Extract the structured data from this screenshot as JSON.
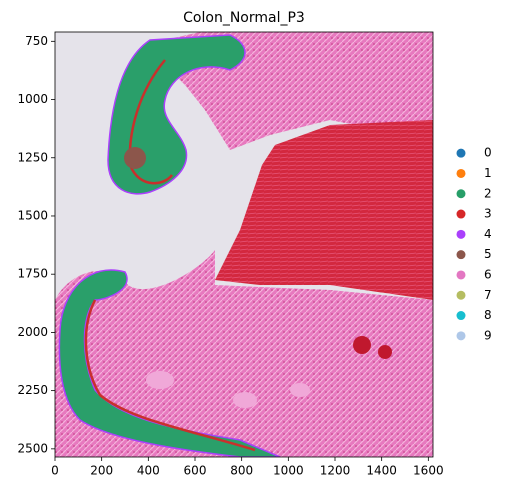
{
  "chart_data": {
    "type": "spatial",
    "title": "Colon_Normal_P3",
    "xlim": [
      0,
      1620
    ],
    "ylim": [
      2535,
      710
    ],
    "xticks": [
      0,
      200,
      400,
      600,
      800,
      1000,
      1200,
      1400,
      1600
    ],
    "yticks": [
      750,
      1000,
      1250,
      1500,
      1750,
      2000,
      2250,
      2500
    ],
    "legend": {
      "loc": "right",
      "labels": [
        "0",
        "1",
        "2",
        "3",
        "4",
        "5",
        "6",
        "7",
        "8",
        "9"
      ],
      "colors": [
        "#1f77b4",
        "#ff7f0e",
        "#279e68",
        "#d62728",
        "#aa40fc",
        "#8c564b",
        "#e377c2",
        "#b5bd61",
        "#17becf",
        "#aec7e8"
      ]
    }
  }
}
